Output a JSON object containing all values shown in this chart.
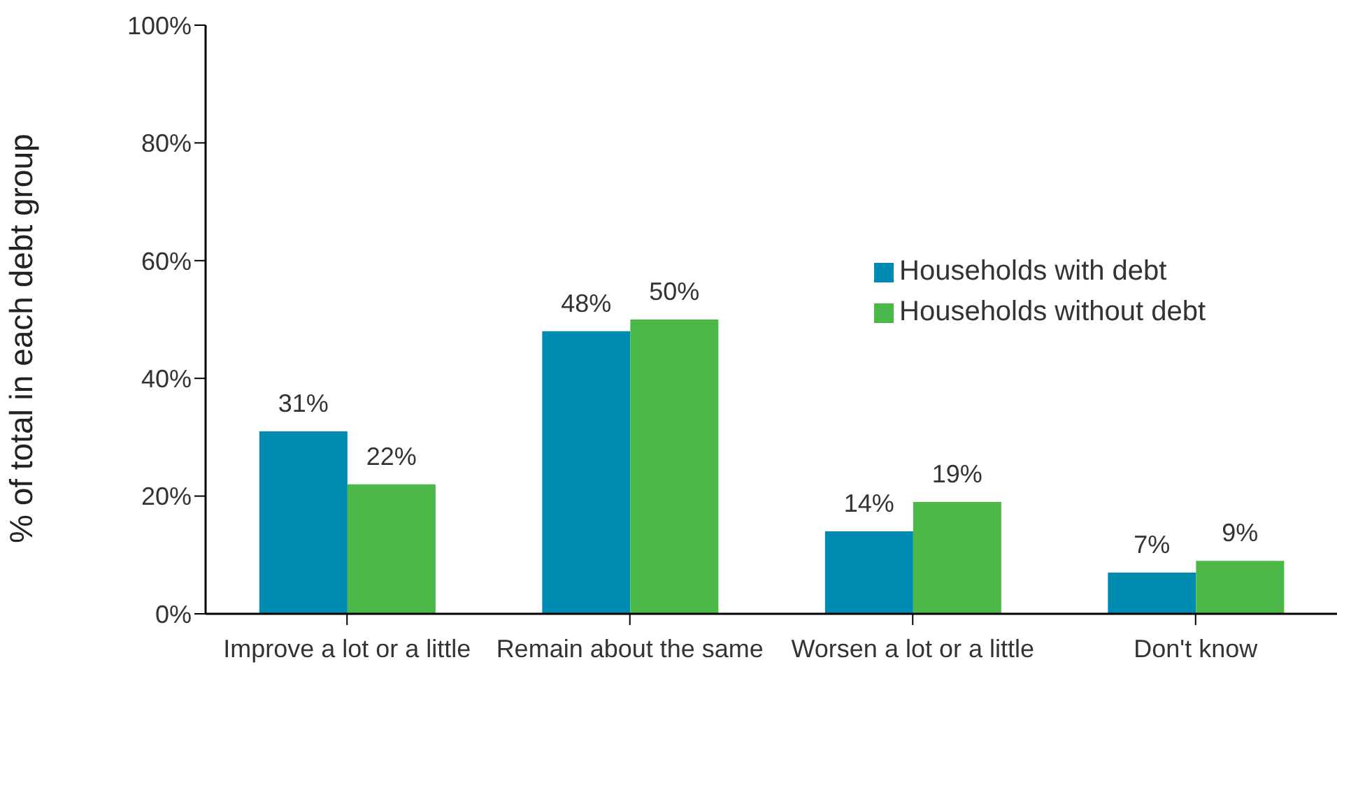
{
  "chart_data": {
    "type": "bar",
    "ylabel": "% of total in each debt group",
    "categories": [
      "Improve a lot or a little",
      "Remain about the same",
      "Worsen a lot or a little",
      "Don't know"
    ],
    "series": [
      {
        "name": "Households with debt",
        "color": "#008bb0",
        "values": [
          31,
          48,
          14,
          7
        ],
        "value_labels": [
          "31%",
          "48%",
          "14%",
          "7%"
        ]
      },
      {
        "name": "Households without debt",
        "color": "#4cb848",
        "values": [
          22,
          50,
          19,
          9
        ],
        "value_labels": [
          "22%",
          "50%",
          "19%",
          "9%"
        ]
      }
    ],
    "ylim": [
      0,
      100
    ],
    "yticks": [
      {
        "value": 0,
        "label": "0%"
      },
      {
        "value": 20,
        "label": "20%"
      },
      {
        "value": 40,
        "label": "40%"
      },
      {
        "value": 60,
        "label": "60%"
      },
      {
        "value": 80,
        "label": "80%"
      },
      {
        "value": 100,
        "label": "100%"
      }
    ],
    "grid": false,
    "legend": "top right"
  }
}
